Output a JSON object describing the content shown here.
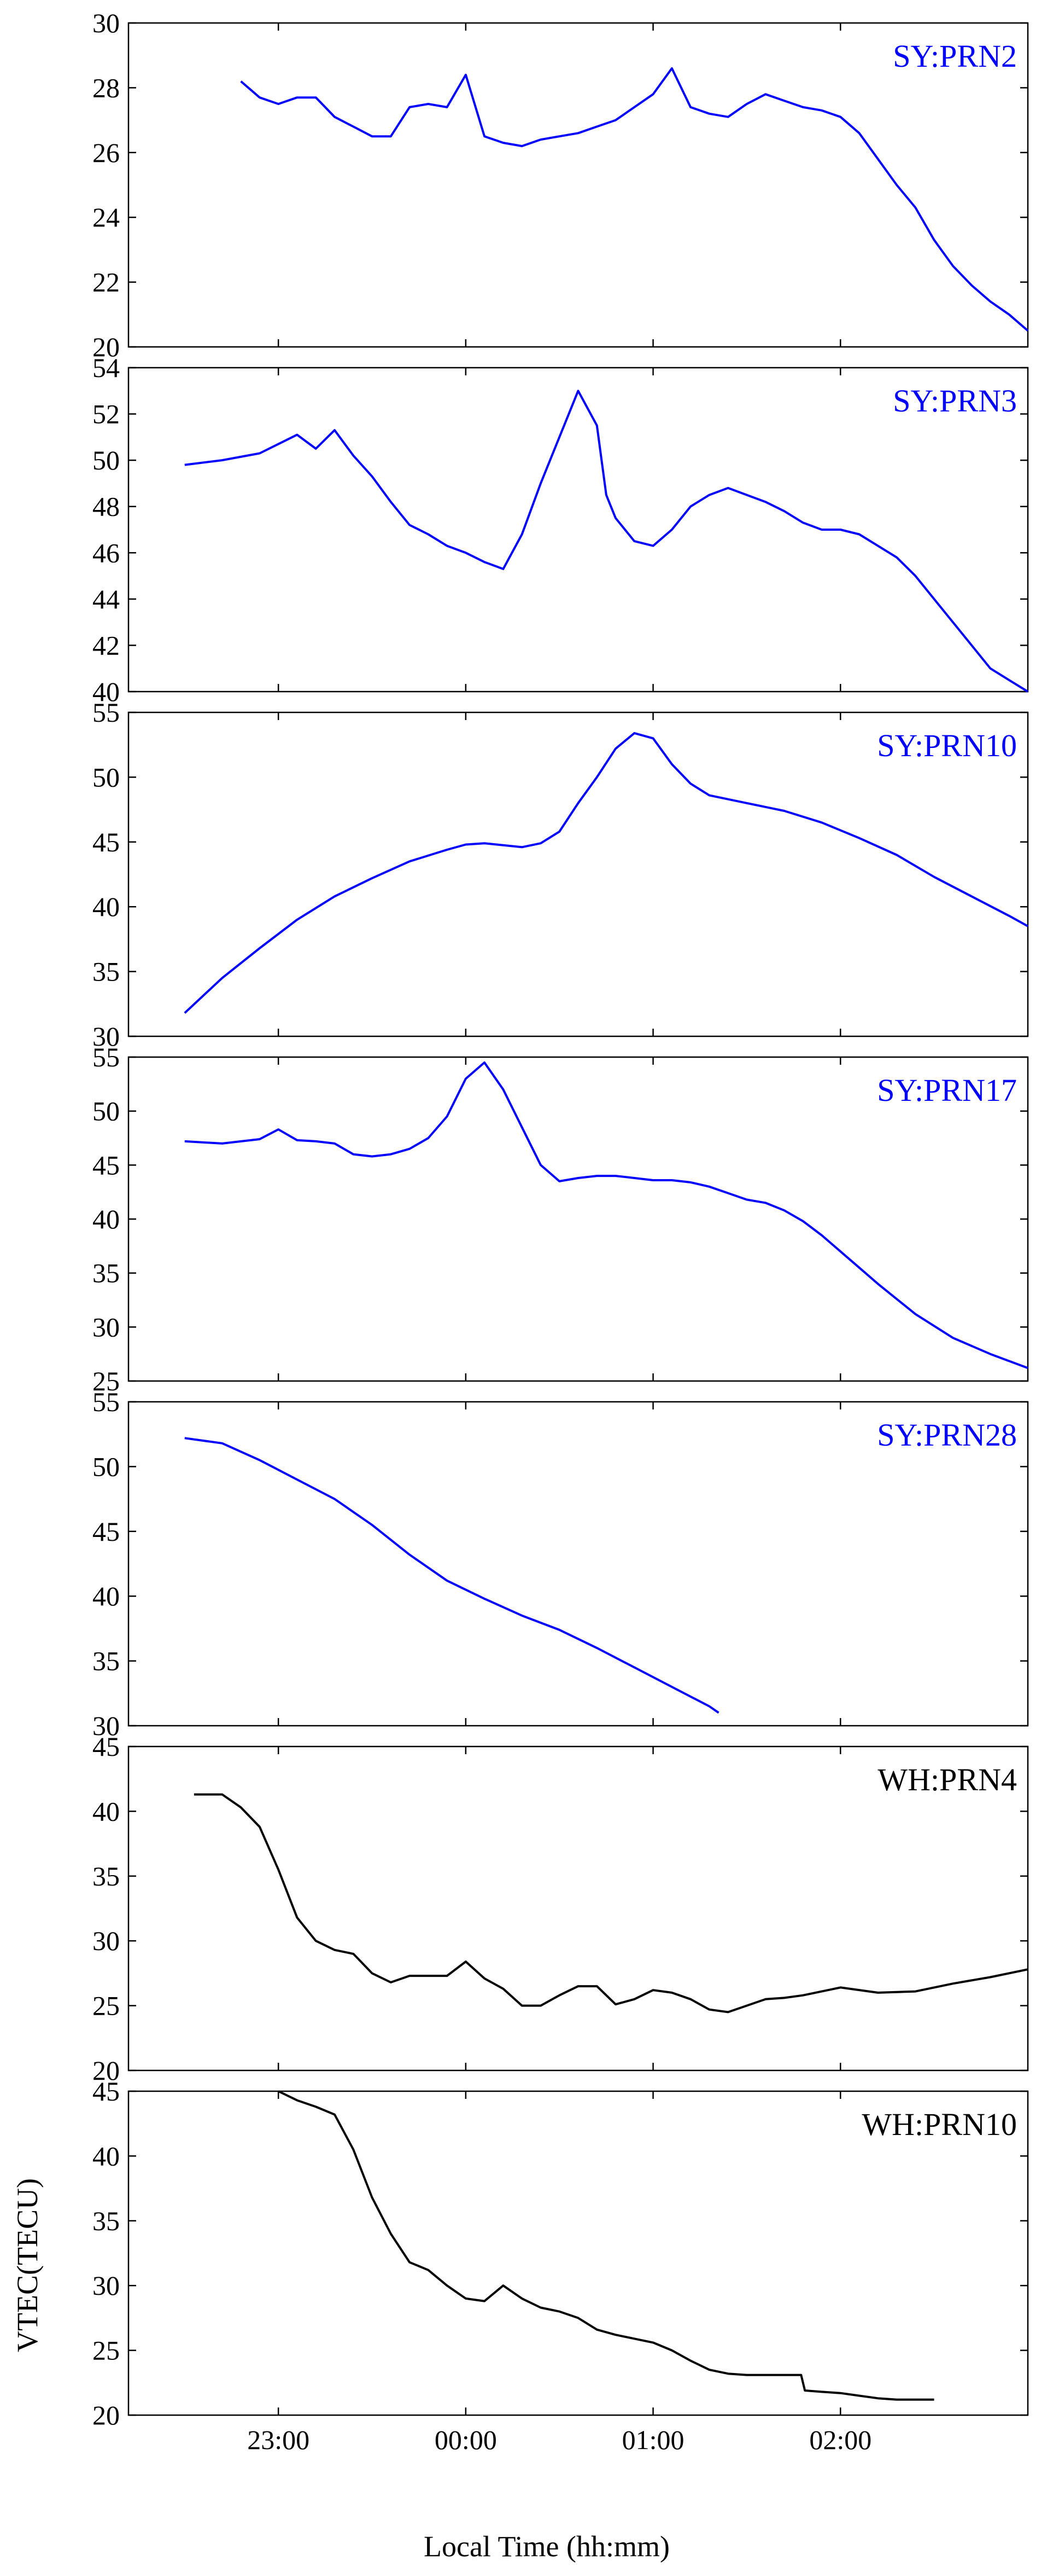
{
  "figure": {
    "xlabel": "Local Time (hh:mm)",
    "ylabel": "VTEC(TECU)"
  },
  "chart_data": [
    {
      "type": "line",
      "panel_label": "SY:PRN2",
      "color": "#0000ff",
      "ylim": [
        20,
        30
      ],
      "yticks": [
        20,
        22,
        24,
        26,
        28,
        30
      ],
      "xlim": [
        -1.8,
        3.0
      ],
      "x": [
        -1.2,
        -1.1,
        -1.0,
        -0.9,
        -0.8,
        -0.7,
        -0.6,
        -0.5,
        -0.4,
        -0.3,
        -0.2,
        -0.1,
        0.0,
        0.1,
        0.2,
        0.3,
        0.4,
        0.5,
        0.6,
        0.7,
        0.8,
        0.9,
        1.0,
        1.1,
        1.2,
        1.3,
        1.4,
        1.5,
        1.6,
        1.7,
        1.8,
        1.9,
        2.0,
        2.1,
        2.2,
        2.3,
        2.4,
        2.5,
        2.6,
        2.7,
        2.8,
        2.9,
        3.0
      ],
      "y": [
        28.2,
        27.7,
        27.5,
        27.7,
        27.7,
        27.1,
        26.8,
        26.5,
        26.5,
        27.4,
        27.5,
        27.4,
        28.4,
        26.5,
        26.3,
        26.2,
        26.4,
        26.5,
        26.6,
        26.8,
        27.0,
        27.4,
        27.8,
        28.6,
        27.4,
        27.2,
        27.1,
        27.5,
        27.8,
        27.6,
        27.4,
        27.3,
        27.1,
        26.6,
        25.8,
        25.0,
        24.3,
        23.3,
        22.5,
        21.9,
        21.4,
        21.0,
        20.5
      ]
    },
    {
      "type": "line",
      "panel_label": "SY:PRN3",
      "color": "#0000ff",
      "ylim": [
        40,
        54
      ],
      "yticks": [
        40,
        42,
        44,
        46,
        48,
        50,
        52,
        54
      ],
      "xlim": [
        -1.8,
        3.0
      ],
      "x": [
        -1.5,
        -1.3,
        -1.1,
        -0.9,
        -0.8,
        -0.7,
        -0.6,
        -0.5,
        -0.4,
        -0.3,
        -0.2,
        -0.1,
        0.0,
        0.1,
        0.2,
        0.3,
        0.4,
        0.5,
        0.6,
        0.7,
        0.75,
        0.8,
        0.9,
        1.0,
        1.1,
        1.2,
        1.3,
        1.4,
        1.5,
        1.6,
        1.7,
        1.8,
        1.9,
        2.0,
        2.1,
        2.2,
        2.3,
        2.4,
        2.5,
        2.6,
        2.7,
        2.8,
        2.9,
        3.0
      ],
      "y": [
        49.8,
        50.0,
        50.3,
        51.1,
        50.5,
        51.3,
        50.2,
        49.3,
        48.2,
        47.2,
        46.8,
        46.3,
        46.0,
        45.6,
        45.3,
        46.8,
        49.0,
        51.0,
        53.0,
        51.5,
        48.5,
        47.5,
        46.5,
        46.3,
        47.0,
        48.0,
        48.5,
        48.8,
        48.5,
        48.2,
        47.8,
        47.3,
        47.0,
        47.0,
        46.8,
        46.3,
        45.8,
        45.0,
        44.0,
        43.0,
        42.0,
        41.0,
        40.5,
        40.0
      ]
    },
    {
      "type": "line",
      "panel_label": "SY:PRN10",
      "color": "#0000ff",
      "ylim": [
        30,
        55
      ],
      "yticks": [
        30,
        35,
        40,
        45,
        50,
        55
      ],
      "xlim": [
        -1.8,
        3.0
      ],
      "x": [
        -1.5,
        -1.3,
        -1.1,
        -0.9,
        -0.7,
        -0.5,
        -0.3,
        -0.1,
        0.0,
        0.1,
        0.3,
        0.4,
        0.5,
        0.6,
        0.7,
        0.8,
        0.9,
        1.0,
        1.1,
        1.2,
        1.3,
        1.5,
        1.7,
        1.9,
        2.1,
        2.3,
        2.5,
        2.7,
        2.9,
        3.0
      ],
      "y": [
        31.8,
        34.5,
        36.8,
        39.0,
        40.8,
        42.2,
        43.5,
        44.4,
        44.8,
        44.9,
        44.6,
        44.9,
        45.8,
        48.0,
        50.0,
        52.2,
        53.4,
        53.0,
        51.0,
        49.5,
        48.6,
        48.0,
        47.4,
        46.5,
        45.3,
        44.0,
        42.3,
        40.8,
        39.3,
        38.5
      ]
    },
    {
      "type": "line",
      "panel_label": "SY:PRN17",
      "color": "#0000ff",
      "ylim": [
        25,
        55
      ],
      "yticks": [
        25,
        30,
        35,
        40,
        45,
        50,
        55
      ],
      "xlim": [
        -1.8,
        3.0
      ],
      "x": [
        -1.5,
        -1.3,
        -1.1,
        -1.0,
        -0.9,
        -0.8,
        -0.7,
        -0.6,
        -0.5,
        -0.4,
        -0.3,
        -0.2,
        -0.1,
        0.0,
        0.1,
        0.2,
        0.3,
        0.4,
        0.5,
        0.6,
        0.7,
        0.8,
        0.9,
        1.0,
        1.1,
        1.2,
        1.3,
        1.4,
        1.5,
        1.6,
        1.7,
        1.8,
        1.9,
        2.0,
        2.1,
        2.2,
        2.4,
        2.6,
        2.8,
        3.0
      ],
      "y": [
        47.2,
        47.0,
        47.4,
        48.3,
        47.3,
        47.2,
        47.0,
        46.0,
        45.8,
        46.0,
        46.5,
        47.5,
        49.5,
        53.0,
        54.5,
        52.0,
        48.5,
        45.0,
        43.5,
        43.8,
        44.0,
        44.0,
        43.8,
        43.6,
        43.6,
        43.4,
        43.0,
        42.4,
        41.8,
        41.5,
        40.8,
        39.8,
        38.5,
        37.0,
        35.5,
        34.0,
        31.2,
        29.0,
        27.5,
        26.2
      ]
    },
    {
      "type": "line",
      "panel_label": "SY:PRN28",
      "color": "#0000ff",
      "ylim": [
        30,
        55
      ],
      "yticks": [
        30,
        35,
        40,
        45,
        50,
        55
      ],
      "xlim": [
        -1.8,
        3.0
      ],
      "x": [
        -1.5,
        -1.3,
        -1.1,
        -0.9,
        -0.7,
        -0.5,
        -0.3,
        -0.1,
        0.0,
        0.1,
        0.3,
        0.5,
        0.7,
        0.9,
        1.1,
        1.3,
        1.35
      ],
      "y": [
        52.2,
        51.8,
        50.5,
        49.0,
        47.5,
        45.5,
        43.2,
        41.2,
        40.5,
        39.8,
        38.5,
        37.4,
        36.0,
        34.5,
        33.0,
        31.5,
        31.0
      ]
    },
    {
      "type": "line",
      "panel_label": "WH:PRN4",
      "color": "#000000",
      "ylim": [
        20,
        45
      ],
      "yticks": [
        20,
        25,
        30,
        35,
        40,
        45
      ],
      "xlim": [
        -1.8,
        3.0
      ],
      "x": [
        -1.45,
        -1.3,
        -1.2,
        -1.1,
        -1.0,
        -0.9,
        -0.8,
        -0.7,
        -0.6,
        -0.5,
        -0.4,
        -0.3,
        -0.2,
        -0.1,
        0.0,
        0.1,
        0.2,
        0.3,
        0.4,
        0.5,
        0.6,
        0.7,
        0.8,
        0.9,
        1.0,
        1.1,
        1.2,
        1.3,
        1.4,
        1.5,
        1.6,
        1.7,
        1.8,
        1.9,
        2.0,
        2.2,
        2.4,
        2.6,
        2.8,
        3.0
      ],
      "y": [
        41.3,
        41.3,
        40.3,
        38.8,
        35.5,
        31.8,
        30.0,
        29.3,
        29.0,
        27.5,
        26.8,
        27.3,
        27.3,
        27.3,
        28.4,
        27.1,
        26.3,
        25.0,
        25.0,
        25.8,
        26.5,
        26.5,
        25.1,
        25.5,
        26.2,
        26.0,
        25.5,
        24.7,
        24.5,
        25.0,
        25.5,
        25.6,
        25.8,
        26.1,
        26.4,
        26.0,
        26.1,
        26.7,
        27.2,
        27.8
      ]
    },
    {
      "type": "line",
      "panel_label": "WH:PRN10",
      "color": "#000000",
      "ylim": [
        20,
        45
      ],
      "yticks": [
        20,
        25,
        30,
        35,
        40,
        45
      ],
      "xlim": [
        -1.8,
        3.0
      ],
      "x": [
        -1.0,
        -0.9,
        -0.8,
        -0.7,
        -0.6,
        -0.5,
        -0.4,
        -0.3,
        -0.2,
        -0.1,
        0.0,
        0.1,
        0.2,
        0.3,
        0.4,
        0.5,
        0.6,
        0.7,
        0.8,
        0.9,
        1.0,
        1.1,
        1.2,
        1.3,
        1.4,
        1.5,
        1.6,
        1.7,
        1.79,
        1.81,
        1.9,
        2.0,
        2.1,
        2.2,
        2.3,
        2.4,
        2.5
      ],
      "y": [
        45.0,
        44.3,
        43.8,
        43.2,
        40.5,
        36.8,
        34.0,
        31.8,
        31.2,
        30.0,
        29.0,
        28.8,
        30.0,
        29.0,
        28.3,
        28.0,
        27.5,
        26.6,
        26.2,
        25.9,
        25.6,
        25.0,
        24.2,
        23.5,
        23.2,
        23.1,
        23.1,
        23.1,
        23.1,
        21.9,
        21.8,
        21.7,
        21.5,
        21.3,
        21.2,
        21.2,
        21.2
      ]
    }
  ],
  "xaxis": {
    "ticks": [
      -1,
      0,
      1,
      2
    ],
    "tick_labels": [
      "23:00",
      "00:00",
      "01:00",
      "02:00"
    ]
  }
}
